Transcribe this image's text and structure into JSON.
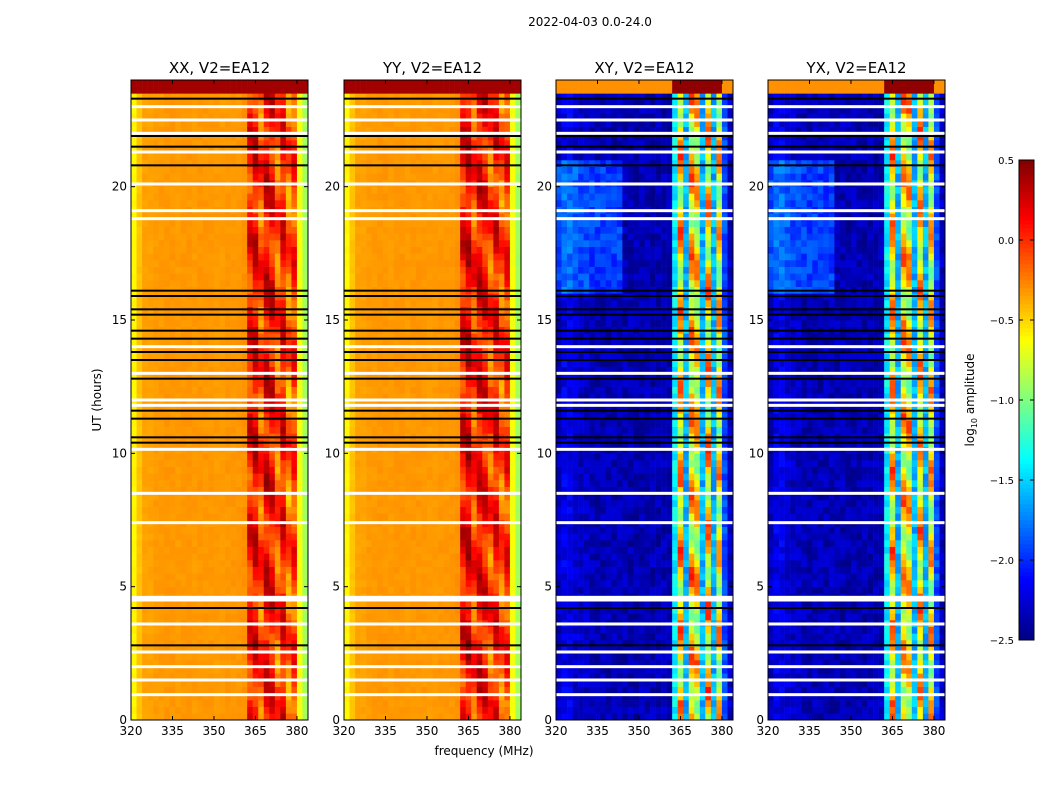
{
  "chart_data": {
    "type": "heatmap",
    "suptitle": "2022-04-03 0.0-24.0",
    "xlabel": "frequency (MHz)",
    "ylabel": "UT (hours)",
    "xlim": [
      320,
      384
    ],
    "ylim": [
      0,
      24
    ],
    "xticks": [
      "320",
      "335",
      "350",
      "365",
      "380"
    ],
    "xtick_values": [
      320,
      335,
      350,
      365,
      380
    ],
    "yticks": [
      "0",
      "5",
      "10",
      "15",
      "20"
    ],
    "ytick_values": [
      0,
      5,
      10,
      15,
      20
    ],
    "colorbar": {
      "label_main": "log",
      "label_sub": "10",
      "label_rest": " amplitude",
      "vmin": -2.5,
      "vmax": 0.5,
      "cmap": "jet",
      "ticks": [
        "0.5",
        "0.0",
        "−0.5",
        "−1.0",
        "−1.5",
        "−2.0",
        "−2.5"
      ],
      "tick_values": [
        0.5,
        0.0,
        -0.5,
        -1.0,
        -1.5,
        -2.0,
        -2.5
      ]
    },
    "freq_bin_MHz": 2,
    "time_bin_hours": 0.25,
    "panels": [
      {
        "title": "XX, V2=EA12",
        "kind": "parallel",
        "profile": [
          -0.6,
          -0.45,
          -0.35,
          -0.35,
          -0.33,
          -0.33,
          -0.32,
          -0.32,
          -0.33,
          -0.32,
          -0.32,
          -0.33,
          -0.32,
          -0.32,
          -0.32,
          -0.33,
          -0.33,
          -0.32,
          -0.32,
          -0.32,
          -0.3,
          0.05,
          0.15,
          -0.1,
          0.15,
          0.1,
          -0.15,
          0.1,
          -0.2,
          -0.05,
          -0.65,
          -0.9
        ]
      },
      {
        "title": "YY, V2=EA12",
        "kind": "parallel",
        "profile": [
          -0.6,
          -0.45,
          -0.35,
          -0.35,
          -0.33,
          -0.33,
          -0.32,
          -0.32,
          -0.33,
          -0.32,
          -0.32,
          -0.33,
          -0.32,
          -0.32,
          -0.32,
          -0.33,
          -0.33,
          -0.32,
          -0.32,
          -0.32,
          -0.3,
          0.1,
          0.2,
          -0.05,
          0.15,
          0.1,
          -0.1,
          0.1,
          -0.15,
          -0.0,
          -0.65,
          -0.9
        ]
      },
      {
        "title": "XY, V2=EA12",
        "kind": "cross",
        "profile": [
          -2.3,
          -2.2,
          -2.2,
          -2.25,
          -2.3,
          -2.3,
          -2.35,
          -2.35,
          -2.35,
          -2.35,
          -2.35,
          -2.35,
          -2.35,
          -2.35,
          -2.35,
          -2.35,
          -2.35,
          -2.35,
          -2.35,
          -2.35,
          -2.35,
          -1.4,
          -0.5,
          -1.6,
          -0.5,
          -0.6,
          -1.6,
          -0.5,
          -1.6,
          -0.6,
          -1.9,
          -2.3
        ]
      },
      {
        "title": "YX, V2=EA12",
        "kind": "cross",
        "profile": [
          -2.3,
          -2.2,
          -2.2,
          -2.25,
          -2.3,
          -2.3,
          -2.35,
          -2.35,
          -2.35,
          -2.35,
          -2.35,
          -2.35,
          -2.35,
          -2.35,
          -2.35,
          -2.35,
          -2.35,
          -2.35,
          -2.35,
          -2.35,
          -2.35,
          -1.4,
          -0.5,
          -1.6,
          -0.5,
          -0.6,
          -1.6,
          -0.5,
          -1.6,
          -0.6,
          -1.9,
          -2.3
        ]
      }
    ],
    "flagged_white_hours": [
      0.95,
      1.5,
      2.0,
      2.55,
      3.6,
      4.5,
      4.6,
      7.4,
      8.5,
      10.15,
      11.8,
      12.0,
      13.0,
      14.0,
      18.8,
      19.1,
      20.1,
      21.3,
      22.0,
      22.5,
      23.0
    ],
    "black_line_hours": [
      2.8,
      4.2,
      10.4,
      10.6,
      11.3,
      11.6,
      12.8,
      13.5,
      13.8,
      14.3,
      14.6,
      15.2,
      15.4,
      15.9,
      16.1,
      20.8,
      21.5,
      21.9,
      23.3
    ]
  }
}
